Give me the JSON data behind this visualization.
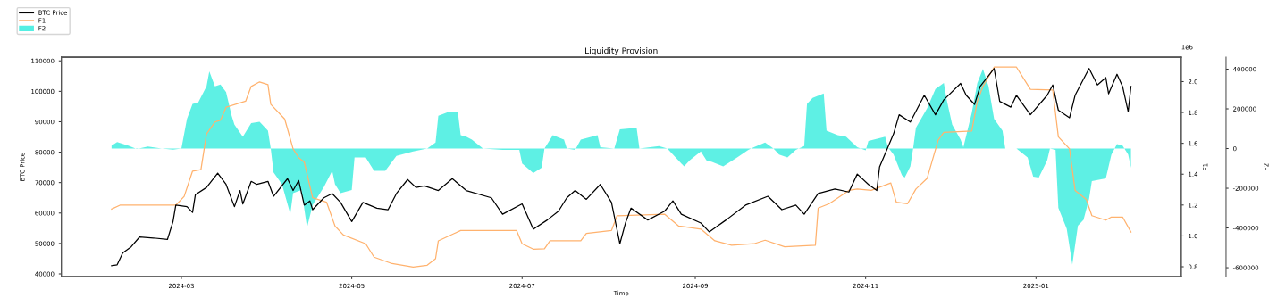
{
  "chart_data": {
    "type": "line",
    "title": "Liquidity Provision",
    "xlabel": "Time",
    "ylabel": "BTC Price",
    "y2label": "F1",
    "y3label": "F2",
    "annotations": [
      "1e6"
    ],
    "xlim": [
      "2024-01-18",
      "2025-02-22"
    ],
    "xticks": [
      {
        "value": "2024-03-01",
        "label": "2024-03"
      },
      {
        "value": "2024-05-01",
        "label": "2024-05"
      },
      {
        "value": "2024-07-01",
        "label": "2024-07"
      },
      {
        "value": "2024-09-01",
        "label": "2024-09"
      },
      {
        "value": "2024-11-01",
        "label": "2024-11"
      },
      {
        "value": "2025-01-01",
        "label": "2025-01"
      }
    ],
    "ylim": [
      39100,
      111200
    ],
    "yticks": [
      40000,
      50000,
      60000,
      70000,
      80000,
      90000,
      100000,
      110000
    ],
    "y2lim": [
      0.736,
      2.158
    ],
    "y2ticks": [
      0.8,
      {
        "value": 1,
        "label": "1.0"
      },
      1.2,
      1.4,
      1.6,
      1.8,
      {
        "value": 2,
        "label": "2.0"
      }
    ],
    "y3lim": [
      -645000,
      460000
    ],
    "y3ticks": [
      -600000,
      -400000,
      -200000,
      0,
      200000,
      400000
    ],
    "legend": "top left",
    "grid": false,
    "series": [
      {
        "name": "BTC Price",
        "color": "#000000",
        "x": [
          "2024-02-05",
          "2024-02-07",
          "2024-02-09",
          "2024-02-12",
          "2024-02-15",
          "2024-02-20",
          "2024-02-25",
          "2024-02-27",
          "2024-02-28",
          "2024-03-03",
          "2024-03-05",
          "2024-03-06",
          "2024-03-10",
          "2024-03-14",
          "2024-03-17",
          "2024-03-20",
          "2024-03-22",
          "2024-03-23",
          "2024-03-26",
          "2024-03-28",
          "2024-04-01",
          "2024-04-03",
          "2024-04-08",
          "2024-04-10",
          "2024-04-12",
          "2024-04-14",
          "2024-04-16",
          "2024-04-17",
          "2024-04-21",
          "2024-04-24",
          "2024-04-27",
          "2024-05-01",
          "2024-05-05",
          "2024-05-10",
          "2024-05-14",
          "2024-05-17",
          "2024-05-21",
          "2024-05-24",
          "2024-05-27",
          "2024-06-01",
          "2024-06-06",
          "2024-06-11",
          "2024-06-20",
          "2024-06-24",
          "2024-07-01",
          "2024-07-05",
          "2024-07-10",
          "2024-07-14",
          "2024-07-17",
          "2024-07-20",
          "2024-07-24",
          "2024-07-29",
          "2024-08-02",
          "2024-08-05",
          "2024-08-07",
          "2024-08-09",
          "2024-08-15",
          "2024-08-21",
          "2024-08-24",
          "2024-08-27",
          "2024-09-03",
          "2024-09-06",
          "2024-09-12",
          "2024-09-19",
          "2024-09-27",
          "2024-10-02",
          "2024-10-07",
          "2024-10-10",
          "2024-10-15",
          "2024-10-21",
          "2024-10-26",
          "2024-10-29",
          "2024-11-02",
          "2024-11-05",
          "2024-11-06",
          "2024-11-11",
          "2024-11-13",
          "2024-11-17",
          "2024-11-22",
          "2024-11-26",
          "2024-11-29",
          "2024-12-05",
          "2024-12-07",
          "2024-12-10",
          "2024-12-12",
          "2024-12-17",
          "2024-12-19",
          "2024-12-23",
          "2024-12-25",
          "2024-12-30",
          "2025-01-05",
          "2025-01-07",
          "2025-01-09",
          "2025-01-13",
          "2025-01-15",
          "2025-01-20",
          "2025-01-23",
          "2025-01-26",
          "2025-01-27",
          "2025-01-30",
          "2025-02-01",
          "2025-02-03",
          "2025-02-04"
        ],
        "values": [
          42700,
          43000,
          46900,
          48900,
          52100,
          51800,
          51300,
          57200,
          62600,
          62100,
          60200,
          66000,
          68400,
          73100,
          69400,
          62100,
          67400,
          63000,
          70400,
          69400,
          70400,
          65500,
          71300,
          67400,
          70700,
          62600,
          64000,
          61100,
          65000,
          66400,
          63500,
          57200,
          63500,
          61600,
          61100,
          66400,
          71000,
          68400,
          68900,
          67400,
          71300,
          67400,
          65000,
          59600,
          63000,
          54700,
          57700,
          60600,
          65000,
          67400,
          64500,
          69400,
          63500,
          49900,
          56700,
          61600,
          57700,
          60600,
          64000,
          59600,
          56700,
          53800,
          57700,
          62600,
          65500,
          61100,
          62600,
          59600,
          66400,
          67900,
          66900,
          72800,
          69400,
          67400,
          75200,
          86000,
          92300,
          89900,
          98700,
          92300,
          97200,
          102600,
          98700,
          95700,
          101600,
          107500,
          96700,
          94800,
          98700,
          92300,
          98700,
          102100,
          93800,
          91300,
          98700,
          107500,
          102100,
          104500,
          99200,
          105600,
          101600,
          93300,
          101600
        ]
      },
      {
        "name": "F1",
        "type": "line",
        "axis": "y2",
        "color": "#ffb26e",
        "x": [
          "2024-02-05",
          "2024-02-08",
          "2024-02-18",
          "2024-02-28",
          "2024-03-02",
          "2024-03-05",
          "2024-03-08",
          "2024-03-10",
          "2024-03-13",
          "2024-03-15",
          "2024-03-17",
          "2024-03-24",
          "2024-03-26",
          "2024-03-29",
          "2024-04-01",
          "2024-04-02",
          "2024-04-07",
          "2024-04-10",
          "2024-04-12",
          "2024-04-14",
          "2024-04-17",
          "2024-04-22",
          "2024-04-25",
          "2024-04-28",
          "2024-05-06",
          "2024-05-09",
          "2024-05-15",
          "2024-05-23",
          "2024-05-28",
          "2024-05-31",
          "2024-06-01",
          "2024-06-09",
          "2024-06-29",
          "2024-07-01",
          "2024-07-05",
          "2024-07-09",
          "2024-07-11",
          "2024-07-22",
          "2024-07-24",
          "2024-08-02",
          "2024-08-04",
          "2024-08-21",
          "2024-08-26",
          "2024-09-03",
          "2024-09-08",
          "2024-09-14",
          "2024-09-22",
          "2024-09-26",
          "2024-10-03",
          "2024-10-14",
          "2024-10-15",
          "2024-10-19",
          "2024-10-26",
          "2024-10-29",
          "2024-11-03",
          "2024-11-10",
          "2024-11-12",
          "2024-11-16",
          "2024-11-19",
          "2024-11-23",
          "2024-11-27",
          "2024-11-29",
          "2024-12-09",
          "2024-12-11",
          "2024-12-13",
          "2024-12-17",
          "2024-12-25",
          "2024-12-30",
          "2025-01-07",
          "2025-01-09",
          "2025-01-13",
          "2025-01-15",
          "2025-01-19",
          "2025-01-21",
          "2025-01-26",
          "2025-01-28",
          "2025-02-01",
          "2025-02-04"
        ],
        "values": [
          1.174,
          1.199,
          1.199,
          1.199,
          1.256,
          1.42,
          1.43,
          1.661,
          1.738,
          1.75,
          1.834,
          1.873,
          1.969,
          1.998,
          1.98,
          1.853,
          1.757,
          1.564,
          1.507,
          1.478,
          1.247,
          1.218,
          1.064,
          1.006,
          0.949,
          0.862,
          0.823,
          0.798,
          0.81,
          0.852,
          0.968,
          1.035,
          1.035,
          0.949,
          0.914,
          0.917,
          0.968,
          0.968,
          1.016,
          1.035,
          1.131,
          1.141,
          1.064,
          1.044,
          0.968,
          0.939,
          0.949,
          0.972,
          0.929,
          0.939,
          1.18,
          1.209,
          1.295,
          1.304,
          1.295,
          1.343,
          1.218,
          1.209,
          1.304,
          1.372,
          1.622,
          1.671,
          1.68,
          1.873,
          1.969,
          2.094,
          2.094,
          1.95,
          1.945,
          1.642,
          1.564,
          1.295,
          1.237,
          1.131,
          1.102,
          1.122,
          1.122,
          1.025
        ]
      },
      {
        "name": "F2",
        "type": "area",
        "axis": "y3",
        "color": "#55efe3",
        "x": [
          "2024-02-05",
          "2024-02-07",
          "2024-02-11",
          "2024-02-14",
          "2024-02-18",
          "2024-02-23",
          "2024-02-27",
          "2024-03-01",
          "2024-03-03",
          "2024-03-05",
          "2024-03-07",
          "2024-03-10",
          "2024-03-11",
          "2024-03-13",
          "2024-03-15",
          "2024-03-17",
          "2024-03-19",
          "2024-03-20",
          "2024-03-23",
          "2024-03-26",
          "2024-03-29",
          "2024-04-01",
          "2024-04-02",
          "2024-04-03",
          "2024-04-06",
          "2024-04-09",
          "2024-04-10",
          "2024-04-13",
          "2024-04-15",
          "2024-04-17",
          "2024-04-21",
          "2024-04-24",
          "2024-04-25",
          "2024-04-27",
          "2024-05-01",
          "2024-05-02",
          "2024-05-06",
          "2024-05-09",
          "2024-05-13",
          "2024-05-17",
          "2024-05-23",
          "2024-05-28",
          "2024-05-31",
          "2024-06-01",
          "2024-06-05",
          "2024-06-08",
          "2024-06-09",
          "2024-06-11",
          "2024-06-13",
          "2024-06-15",
          "2024-06-17",
          "2024-06-24",
          "2024-06-30",
          "2024-07-01",
          "2024-07-05",
          "2024-07-08",
          "2024-07-09",
          "2024-07-12",
          "2024-07-16",
          "2024-07-17",
          "2024-07-20",
          "2024-07-22",
          "2024-07-28",
          "2024-07-29",
          "2024-08-03",
          "2024-08-05",
          "2024-08-11",
          "2024-08-12",
          "2024-08-19",
          "2024-08-22",
          "2024-08-24",
          "2024-08-28",
          "2024-08-30",
          "2024-09-03",
          "2024-09-05",
          "2024-09-07",
          "2024-09-11",
          "2024-09-16",
          "2024-09-20",
          "2024-09-22",
          "2024-09-26",
          "2024-09-29",
          "2024-10-01",
          "2024-10-04",
          "2024-10-07",
          "2024-10-10",
          "2024-10-11",
          "2024-10-13",
          "2024-10-17",
          "2024-10-18",
          "2024-10-22",
          "2024-10-25",
          "2024-10-29",
          "2024-11-01",
          "2024-11-02",
          "2024-11-08",
          "2024-11-09",
          "2024-11-11",
          "2024-11-14",
          "2024-11-15",
          "2024-11-17",
          "2024-11-18",
          "2024-11-19",
          "2024-11-23",
          "2024-11-26",
          "2024-11-29",
          "2024-11-30",
          "2024-12-02",
          "2024-12-05",
          "2024-12-06",
          "2024-12-09",
          "2024-12-11",
          "2024-12-13",
          "2024-12-15",
          "2024-12-17",
          "2024-12-20",
          "2024-12-21",
          "2024-12-25",
          "2024-12-29",
          "2024-12-31",
          "2025-01-02",
          "2025-01-05",
          "2025-01-06",
          "2025-01-08",
          "2025-01-09",
          "2025-01-12",
          "2025-01-14",
          "2025-01-16",
          "2025-01-18",
          "2025-01-20",
          "2025-01-21",
          "2025-01-26",
          "2025-01-28",
          "2025-01-30",
          "2025-02-01",
          "2025-02-03",
          "2025-02-04"
        ],
        "values": [
          15000,
          33000,
          15000,
          -2000,
          10000,
          0,
          -6000,
          0,
          150000,
          225000,
          232000,
          314000,
          389000,
          314000,
          322000,
          284000,
          165000,
          120000,
          60000,
          128000,
          135000,
          90000,
          0,
          -120000,
          -180000,
          -329000,
          -225000,
          -209000,
          -397000,
          -284000,
          -194000,
          -112000,
          -180000,
          -225000,
          -209000,
          -45000,
          -45000,
          -112000,
          -112000,
          -37000,
          -15000,
          0,
          30000,
          165000,
          187000,
          183000,
          67000,
          60000,
          45000,
          22000,
          0,
          -7000,
          -7000,
          -75000,
          -123000,
          -97000,
          0,
          67000,
          45000,
          0,
          -7000,
          45000,
          67000,
          7000,
          0,
          97000,
          105000,
          0,
          12000,
          0,
          -30000,
          -90000,
          -60000,
          -15000,
          -60000,
          -67000,
          -90000,
          -45000,
          -7000,
          7000,
          30000,
          0,
          -30000,
          -45000,
          -7000,
          12000,
          225000,
          255000,
          277000,
          90000,
          67000,
          60000,
          7000,
          -9000,
          38000,
          60000,
          7000,
          -30000,
          -135000,
          -146000,
          -90000,
          0,
          105000,
          202000,
          300000,
          330000,
          247000,
          120000,
          45000,
          7000,
          180000,
          330000,
          401000,
          314000,
          150000,
          90000,
          0,
          0,
          -45000,
          -142000,
          -146000,
          -60000,
          0,
          -7000,
          -299000,
          -404000,
          -584000,
          -389000,
          -359000,
          -254000,
          -164000,
          -150000,
          -30000,
          22000,
          15000,
          -30000,
          -97000
        ]
      }
    ]
  }
}
